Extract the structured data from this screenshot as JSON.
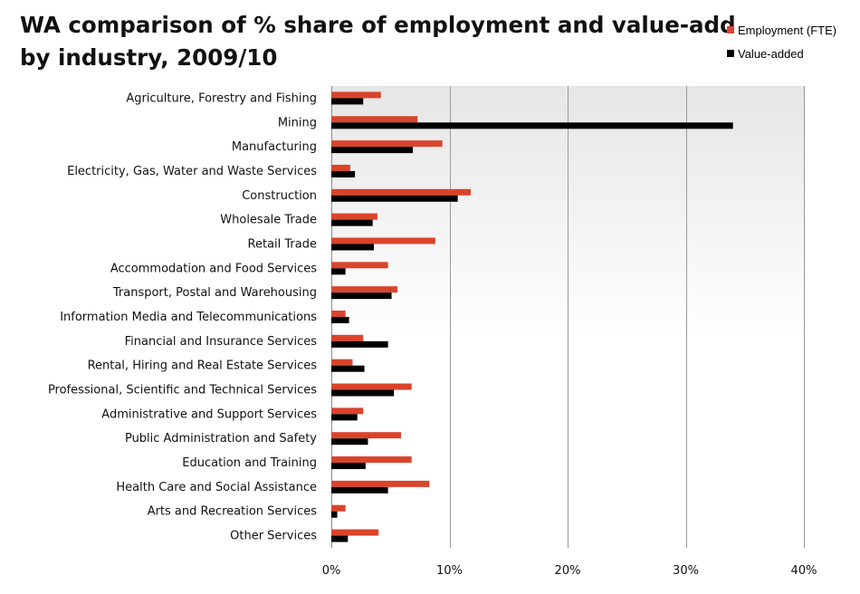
{
  "title_lines": [
    "WA comparison of % share of employment and value-add",
    "by industry, 2009/10"
  ],
  "legend": {
    "items": [
      {
        "label": "Employment (FTE)",
        "color": "#d9442b"
      },
      {
        "label": "Value-added",
        "color": "#000000"
      }
    ],
    "position": "top-right"
  },
  "chart_data": {
    "type": "bar",
    "orientation": "horizontal",
    "title": "WA comparison of % share of employment and value-add by industry, 2009/10",
    "categories": [
      "Agriculture, Forestry and Fishing",
      "Mining",
      "Manufacturing",
      "Electricity, Gas, Water and Waste Services",
      "Construction",
      "Wholesale Trade",
      "Retail Trade",
      "Accommodation and Food Services",
      "Transport, Postal and Warehousing",
      "Information Media and Telecommunications",
      "Financial and Insurance Services",
      "Rental, Hiring and Real Estate Services",
      "Professional, Scientific and Technical Services",
      "Administrative and Support Services",
      "Public Administration and Safety",
      "Education and Training",
      "Health Care and Social Assistance",
      "Arts and Recreation Services",
      "Other Services"
    ],
    "series": [
      {
        "name": "Employment (FTE)",
        "color": "#d9442b",
        "values": [
          4.2,
          7.3,
          9.4,
          1.6,
          11.8,
          3.9,
          8.8,
          4.8,
          5.6,
          1.2,
          2.7,
          1.8,
          6.8,
          2.7,
          5.9,
          6.8,
          8.3,
          1.2,
          4.0
        ]
      },
      {
        "name": "Value-added",
        "color": "#000000",
        "values": [
          2.7,
          34.0,
          6.9,
          2.0,
          10.7,
          3.5,
          3.6,
          1.2,
          5.1,
          1.5,
          4.8,
          2.8,
          5.3,
          2.2,
          3.1,
          2.9,
          4.8,
          0.5,
          1.4
        ]
      }
    ],
    "xlabel": "",
    "ylabel": "",
    "xlim": [
      0,
      40
    ],
    "xticks": [
      0,
      10,
      20,
      30,
      40
    ],
    "xtick_labels": [
      "0%",
      "10%",
      "20%",
      "30%",
      "40%"
    ],
    "grid": true,
    "legend_position": "top-right"
  }
}
